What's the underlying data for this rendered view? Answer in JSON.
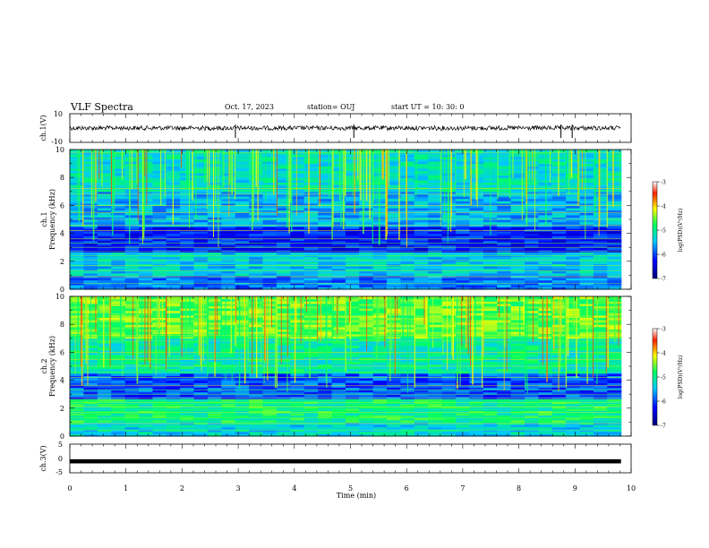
{
  "header": {
    "title": "VLF Spectra",
    "date": "Oct. 17, 2023",
    "station": "station= OUJ",
    "start": "start  UT  =   10: 30: 0"
  },
  "chart_data": [
    {
      "type": "line",
      "name": "ch1-waveform",
      "ylabel": "ch.1(V)",
      "ylim": [
        -10,
        10
      ],
      "yticks": [
        "10",
        "-10"
      ],
      "xlim": [
        0,
        10
      ],
      "baseline": 0,
      "color": "#000000"
    },
    {
      "type": "heatmap",
      "name": "ch1-spectrogram",
      "ylabel_channel": "ch.1",
      "ylabel": "Frequency (kHz)",
      "ylim": [
        0,
        10
      ],
      "yticks": [
        "0",
        "2",
        "4",
        "6",
        "8",
        "10"
      ],
      "xlim": [
        0,
        10
      ],
      "data_end_min": 9.82,
      "colorbar": {
        "label": "log(PSD)(V²/Hz)",
        "ticks": [
          "-3",
          "-4",
          "-5",
          "-6",
          "-7"
        ],
        "range": [
          -7,
          -3
        ]
      }
    },
    {
      "type": "heatmap",
      "name": "ch2-spectrogram",
      "ylabel_channel": "ch.2",
      "ylabel": "Frequency (kHz)",
      "ylim": [
        0,
        10
      ],
      "yticks": [
        "0",
        "2",
        "4",
        "6",
        "8",
        "10"
      ],
      "xlim": [
        0,
        10
      ],
      "data_end_min": 9.82,
      "colorbar": {
        "label": "log(PSD)(V²/Hz)",
        "ticks": [
          "-3",
          "-4",
          "-5",
          "-6",
          "-7"
        ],
        "range": [
          -7,
          -3
        ]
      }
    },
    {
      "type": "line",
      "name": "ch3-waveform",
      "ylabel": "ch.3(V)",
      "ylim": [
        -5,
        5
      ],
      "yticks": [
        "5",
        "0",
        "-5"
      ],
      "xlim": [
        0,
        10
      ],
      "baseline": -1,
      "color": "#000000"
    }
  ],
  "xaxis": {
    "label": "Time  (min)",
    "ticks": [
      "0",
      "1",
      "2",
      "3",
      "4",
      "5",
      "6",
      "7",
      "8",
      "9",
      "10"
    ]
  }
}
